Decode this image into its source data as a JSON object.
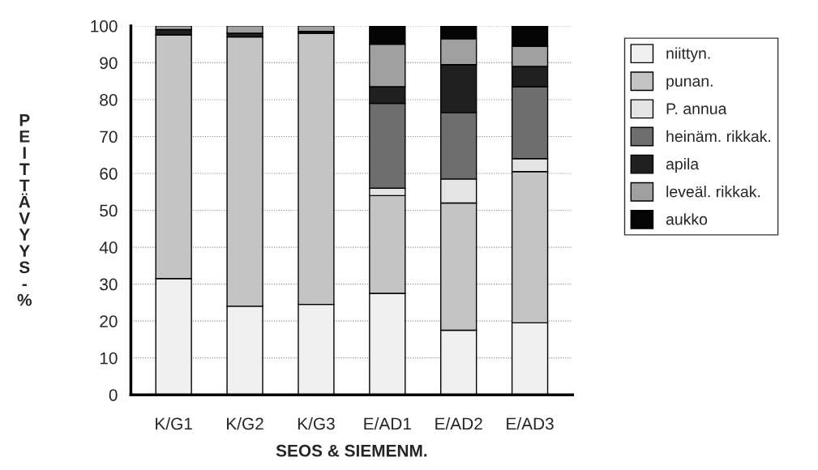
{
  "chart_data": {
    "type": "bar",
    "stacked": true,
    "xlabel": "SEOS & SIEMENM.",
    "ylabel": "PEITTÄVYYS - %",
    "categories": [
      "K/G1",
      "K/G2",
      "K/G3",
      "E/AD1",
      "E/AD2",
      "E/AD3"
    ],
    "series": [
      {
        "name": "niittyn.",
        "color": "#f0f0f0",
        "values": [
          31.5,
          24,
          24.5,
          27.5,
          17.5,
          19.5
        ]
      },
      {
        "name": "punan.",
        "color": "#c4c4c4",
        "values": [
          66,
          73,
          73.5,
          26.5,
          34.5,
          41
        ]
      },
      {
        "name": "P. annua",
        "color": "#e4e4e4",
        "values": [
          0,
          0,
          0,
          2,
          6.5,
          3.5
        ]
      },
      {
        "name": "heinäm. rikkak.",
        "color": "#6e6e6e",
        "values": [
          0,
          0,
          0,
          23,
          18,
          19.5
        ]
      },
      {
        "name": "apila",
        "color": "#202020",
        "values": [
          1.5,
          1,
          0.5,
          4.5,
          13,
          5.5
        ]
      },
      {
        "name": "leveäl. rikkak.",
        "color": "#a0a0a0",
        "values": [
          1,
          2,
          1.5,
          11.5,
          7,
          5.5
        ]
      },
      {
        "name": "aukko",
        "color": "#050505",
        "values": [
          0,
          0,
          0,
          5,
          3.5,
          5.5
        ]
      }
    ],
    "ylim": [
      0,
      100
    ],
    "yticks": [
      0,
      10,
      20,
      30,
      40,
      50,
      60,
      70,
      80,
      90,
      100
    ],
    "grid": "y",
    "legend": "right"
  }
}
